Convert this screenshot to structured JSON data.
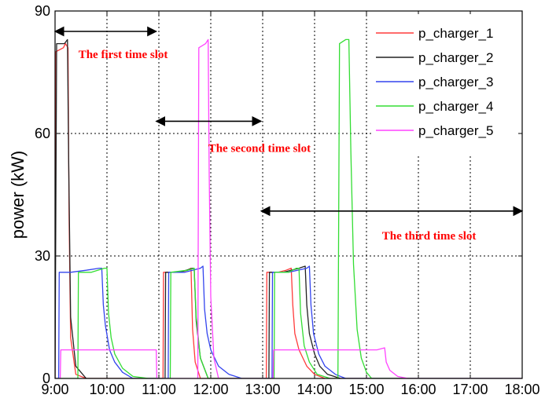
{
  "chart_data": {
    "type": "line",
    "title": "",
    "xlabel": "",
    "ylabel": "power (kW)",
    "x_ticks": [
      "9:00",
      "10:00",
      "11:00",
      "12:00",
      "13:00",
      "14:00",
      "15:00",
      "16:00",
      "17:00",
      "18:00"
    ],
    "y_ticks": [
      "0",
      "30",
      "60",
      "90"
    ],
    "xlim": [
      9,
      18
    ],
    "ylim": [
      0,
      90
    ],
    "grid": true,
    "legend_position": "top-right",
    "series": [
      {
        "name": "p_charger_1",
        "color": "#ff3b3b",
        "points": [
          [
            9.0,
            0
          ],
          [
            9.01,
            80
          ],
          [
            9.16,
            81
          ],
          [
            9.2,
            82
          ],
          [
            9.25,
            81
          ],
          [
            9.27,
            40
          ],
          [
            9.3,
            10
          ],
          [
            9.4,
            1
          ],
          [
            9.6,
            0
          ],
          [
            11.08,
            0
          ],
          [
            11.09,
            26
          ],
          [
            11.4,
            26
          ],
          [
            11.55,
            26.5
          ],
          [
            11.62,
            27
          ],
          [
            11.65,
            12
          ],
          [
            11.7,
            4
          ],
          [
            11.8,
            0
          ],
          [
            13.07,
            0
          ],
          [
            13.08,
            26
          ],
          [
            13.3,
            26
          ],
          [
            13.45,
            26.5
          ],
          [
            13.55,
            27
          ],
          [
            13.58,
            18
          ],
          [
            13.62,
            11
          ],
          [
            13.7,
            7
          ],
          [
            13.85,
            3
          ],
          [
            14.0,
            1
          ],
          [
            14.2,
            0
          ],
          [
            18.0,
            0
          ]
        ]
      },
      {
        "name": "p_charger_2",
        "color": "#222222",
        "points": [
          [
            9.0,
            0
          ],
          [
            9.03,
            82
          ],
          [
            9.18,
            82
          ],
          [
            9.24,
            83
          ],
          [
            9.26,
            55
          ],
          [
            9.3,
            15
          ],
          [
            9.4,
            3
          ],
          [
            9.6,
            0
          ],
          [
            11.12,
            0
          ],
          [
            11.13,
            26
          ],
          [
            11.4,
            26
          ],
          [
            11.65,
            27
          ],
          [
            11.68,
            27
          ],
          [
            11.72,
            14
          ],
          [
            11.8,
            5
          ],
          [
            11.95,
            0
          ],
          [
            13.12,
            0
          ],
          [
            13.13,
            26
          ],
          [
            13.4,
            26
          ],
          [
            13.7,
            27
          ],
          [
            13.82,
            27.5
          ],
          [
            13.85,
            18
          ],
          [
            13.9,
            11
          ],
          [
            14.0,
            6
          ],
          [
            14.1,
            3
          ],
          [
            14.25,
            1
          ],
          [
            14.5,
            0
          ],
          [
            18.0,
            0
          ]
        ]
      },
      {
        "name": "p_charger_3",
        "color": "#3344ee",
        "points": [
          [
            9.0,
            0
          ],
          [
            9.07,
            0
          ],
          [
            9.08,
            26
          ],
          [
            9.3,
            26
          ],
          [
            9.6,
            26.5
          ],
          [
            9.85,
            27
          ],
          [
            9.9,
            27
          ],
          [
            9.93,
            18
          ],
          [
            9.97,
            13
          ],
          [
            10.05,
            7
          ],
          [
            10.15,
            4
          ],
          [
            10.3,
            1.5
          ],
          [
            10.5,
            0
          ],
          [
            11.18,
            0
          ],
          [
            11.19,
            26
          ],
          [
            11.5,
            26
          ],
          [
            11.8,
            27
          ],
          [
            11.85,
            27.5
          ],
          [
            11.88,
            17
          ],
          [
            11.93,
            11
          ],
          [
            12.0,
            7
          ],
          [
            12.15,
            3
          ],
          [
            12.35,
            1
          ],
          [
            12.6,
            0
          ],
          [
            13.18,
            0
          ],
          [
            13.19,
            26
          ],
          [
            13.5,
            26
          ],
          [
            13.85,
            27
          ],
          [
            13.9,
            27.5
          ],
          [
            13.93,
            18
          ],
          [
            13.98,
            11
          ],
          [
            14.08,
            6
          ],
          [
            14.2,
            3
          ],
          [
            14.4,
            1
          ],
          [
            14.6,
            0
          ],
          [
            18.0,
            0
          ]
        ]
      },
      {
        "name": "p_charger_4",
        "color": "#33dd33",
        "points": [
          [
            9.0,
            0
          ],
          [
            9.44,
            0
          ],
          [
            9.45,
            26
          ],
          [
            9.7,
            26
          ],
          [
            9.95,
            27
          ],
          [
            10.0,
            27
          ],
          [
            10.03,
            16
          ],
          [
            10.08,
            10
          ],
          [
            10.15,
            6
          ],
          [
            10.3,
            2.5
          ],
          [
            10.5,
            0.5
          ],
          [
            10.8,
            0
          ],
          [
            11.22,
            0
          ],
          [
            11.23,
            26
          ],
          [
            11.55,
            26.5
          ],
          [
            11.68,
            27
          ],
          [
            11.72,
            15
          ],
          [
            11.8,
            5
          ],
          [
            11.95,
            0
          ],
          [
            13.22,
            0
          ],
          [
            13.23,
            26
          ],
          [
            13.5,
            26
          ],
          [
            13.65,
            27
          ],
          [
            13.7,
            27
          ],
          [
            13.73,
            16
          ],
          [
            13.8,
            8
          ],
          [
            13.9,
            4
          ],
          [
            14.05,
            1
          ],
          [
            14.3,
            0
          ],
          [
            14.45,
            0
          ],
          [
            14.48,
            82
          ],
          [
            14.6,
            83
          ],
          [
            14.66,
            83
          ],
          [
            14.7,
            55
          ],
          [
            14.75,
            28
          ],
          [
            14.82,
            12
          ],
          [
            14.9,
            5
          ],
          [
            15.0,
            1.5
          ],
          [
            15.1,
            0
          ],
          [
            18.0,
            0
          ]
        ]
      },
      {
        "name": "p_charger_5",
        "color": "#ff44ff",
        "points": [
          [
            9.0,
            0
          ],
          [
            9.1,
            0
          ],
          [
            9.11,
            7
          ],
          [
            10.95,
            7
          ],
          [
            10.96,
            0
          ],
          [
            11.75,
            0
          ],
          [
            11.77,
            81
          ],
          [
            11.9,
            82
          ],
          [
            11.95,
            83
          ],
          [
            11.97,
            50
          ],
          [
            12.0,
            20
          ],
          [
            12.06,
            5
          ],
          [
            12.15,
            0
          ],
          [
            13.2,
            0
          ],
          [
            13.21,
            7
          ],
          [
            15.2,
            7
          ],
          [
            15.35,
            7.5
          ],
          [
            15.38,
            4
          ],
          [
            15.45,
            2
          ],
          [
            15.6,
            0.5
          ],
          [
            15.8,
            0
          ],
          [
            18.0,
            0
          ]
        ]
      }
    ],
    "annotations": [
      {
        "text": "The first time slot",
        "arrow_from": 9.0,
        "arrow_to": 10.95,
        "arrow_y": 85,
        "text_x": 9.45,
        "text_y": 78.5
      },
      {
        "text": "The second time slot",
        "arrow_from": 10.95,
        "arrow_to": 12.97,
        "arrow_y": 63,
        "text_x": 11.95,
        "text_y": 55.5
      },
      {
        "text": "The third time slot",
        "arrow_from": 12.97,
        "arrow_to": 18.0,
        "arrow_y": 41,
        "text_x": 15.3,
        "text_y": 34
      }
    ]
  }
}
